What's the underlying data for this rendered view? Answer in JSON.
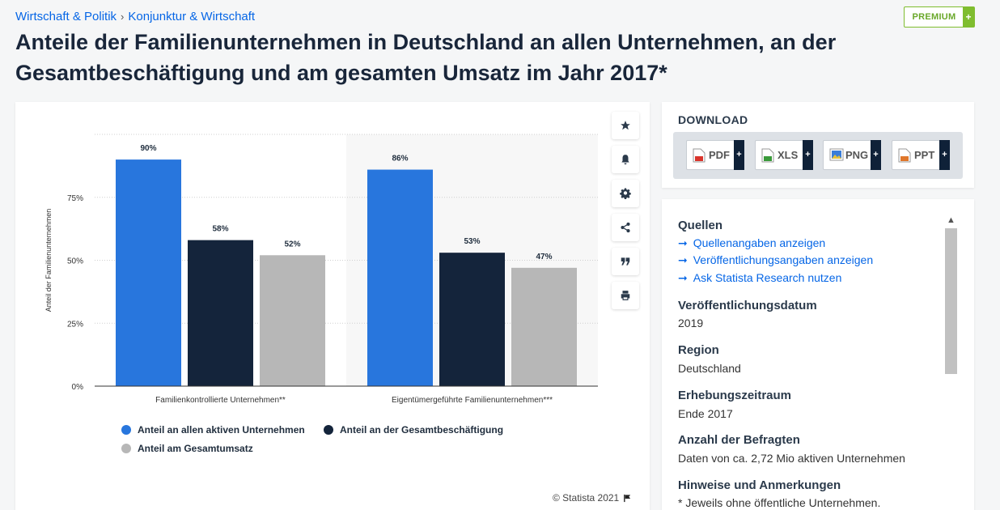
{
  "breadcrumb": {
    "items": [
      "Wirtschaft & Politik",
      "Konjunktur & Wirtschaft"
    ],
    "separator": "›"
  },
  "premium": {
    "label": "PREMIUM",
    "plus": "+"
  },
  "page_title": "Anteile der Familienunternehmen in Deutschland an allen Unternehmen, an der Gesamtbeschäftigung und am gesamten Umsatz im Jahr 2017*",
  "chart_data": {
    "type": "bar",
    "title": "",
    "xlabel": "",
    "ylabel": "Anteil der Familienunternehmen",
    "ylim": [
      0,
      100
    ],
    "yticks": [
      0,
      25,
      50,
      75
    ],
    "ytick_labels": [
      "0%",
      "25%",
      "50%",
      "75%"
    ],
    "grid": true,
    "categories": [
      "Familienkontrollierte Unternehmen**",
      "Eigentümergeführte Familienunternehmen***"
    ],
    "series": [
      {
        "name": "Anteil an allen aktiven Unternehmen",
        "color": "#2876dd",
        "values": [
          90,
          86
        ],
        "labels": [
          "90%",
          "86%"
        ]
      },
      {
        "name": "Anteil an der Gesamtbeschäftigung",
        "color": "#14243b",
        "values": [
          58,
          53
        ],
        "labels": [
          "58%",
          "53%"
        ]
      },
      {
        "name": "Anteil am Gesamtumsatz",
        "color": "#b7b7b7",
        "values": [
          52,
          47
        ],
        "labels": [
          "52%",
          "47%"
        ]
      }
    ],
    "legend_position": "bottom-left"
  },
  "toolbar": {
    "icons": [
      "star-icon",
      "bell-icon",
      "gear-icon",
      "share-icon",
      "quote-icon",
      "print-icon"
    ]
  },
  "copyright": "© Statista 2021",
  "download": {
    "title": "DOWNLOAD",
    "formats": [
      {
        "label": "PDF",
        "color": "#d9342b"
      },
      {
        "label": "XLS",
        "color": "#3a9a3a"
      },
      {
        "label": "PNG",
        "color": "#3a7dd8"
      },
      {
        "label": "PPT",
        "color": "#e0772b"
      }
    ],
    "plus": "+"
  },
  "info": {
    "sources_title": "Quellen",
    "links": [
      "Quellenangaben anzeigen",
      "Veröffentlichungsangaben anzeigen",
      "Ask Statista Research nutzen"
    ],
    "link_arrow": "➞",
    "release_date_title": "Veröffentlichungsdatum",
    "release_date": "2019",
    "region_title": "Region",
    "region": "Deutschland",
    "survey_period_title": "Erhebungszeitraum",
    "survey_period": "Ende 2017",
    "respondents_title": "Anzahl der Befragten",
    "respondents": "Daten von ca. 2,72 Mio aktiven Unternehmen",
    "notes_title": "Hinweise und Anmerkungen",
    "notes": "* Jeweils ohne öffentliche Unternehmen."
  }
}
